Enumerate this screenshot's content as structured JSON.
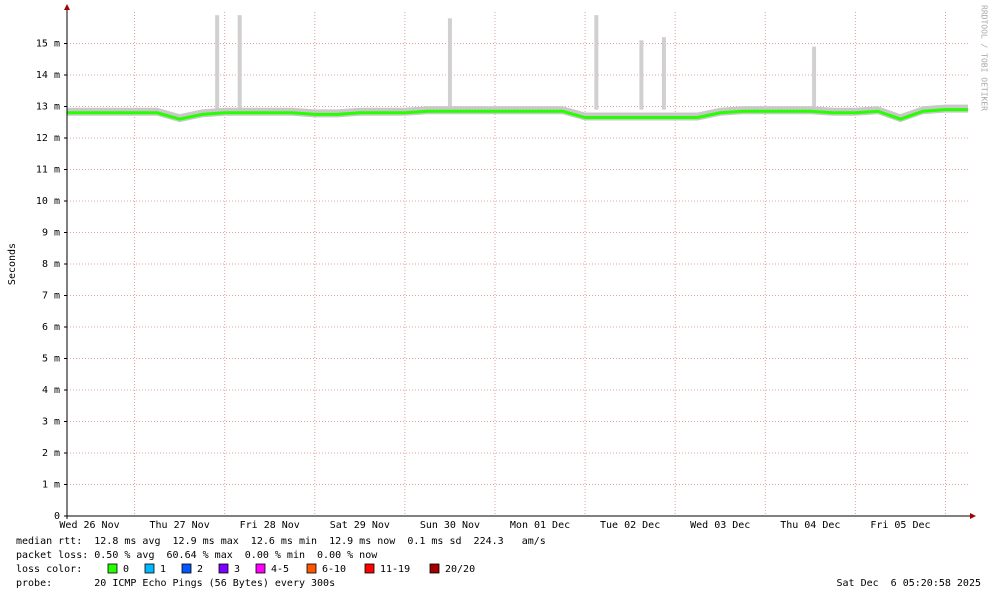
{
  "chart_data": {
    "type": "line",
    "y_label": "Seconds",
    "watermark": "RRDTOOL / TOBI OETIKER",
    "xlim": [
      6,
      246
    ],
    "xticks": [
      {
        "value": 12,
        "label": "Wed 26 Nov"
      },
      {
        "value": 36,
        "label": "Thu 27 Nov"
      },
      {
        "value": 60,
        "label": "Fri 28 Nov"
      },
      {
        "value": 84,
        "label": "Sat 29 Nov"
      },
      {
        "value": 108,
        "label": "Sun 30 Nov"
      },
      {
        "value": 132,
        "label": "Mon 01 Dec"
      },
      {
        "value": 156,
        "label": "Tue 02 Dec"
      },
      {
        "value": 180,
        "label": "Wed 03 Dec"
      },
      {
        "value": 204,
        "label": "Thu 04 Dec"
      },
      {
        "value": 228,
        "label": "Fri 05 Dec"
      }
    ],
    "x_grid": [
      24,
      48,
      72,
      96,
      120,
      144,
      168,
      192,
      216,
      240
    ],
    "ylim": [
      0,
      0.016
    ],
    "yticks": [
      {
        "value": 0,
        "label": "0"
      },
      {
        "value": 0.001,
        "label": "1 m"
      },
      {
        "value": 0.002,
        "label": "2 m"
      },
      {
        "value": 0.003,
        "label": "3 m"
      },
      {
        "value": 0.004,
        "label": "4 m"
      },
      {
        "value": 0.005,
        "label": "5 m"
      },
      {
        "value": 0.006,
        "label": "6 m"
      },
      {
        "value": 0.007,
        "label": "7 m"
      },
      {
        "value": 0.008,
        "label": "8 m"
      },
      {
        "value": 0.009,
        "label": "9 m"
      },
      {
        "value": 0.01,
        "label": "10 m"
      },
      {
        "value": 0.011,
        "label": "11 m"
      },
      {
        "value": 0.012,
        "label": "12 m"
      },
      {
        "value": 0.013,
        "label": "13 m"
      },
      {
        "value": 0.014,
        "label": "14 m"
      },
      {
        "value": 0.015,
        "label": "15 m"
      }
    ],
    "grid": true,
    "x": [
      6,
      12,
      18,
      24,
      30,
      36,
      42,
      48,
      54,
      60,
      66,
      72,
      78,
      84,
      90,
      96,
      102,
      108,
      114,
      120,
      126,
      132,
      138,
      144,
      150,
      156,
      162,
      168,
      174,
      180,
      186,
      192,
      198,
      204,
      210,
      216,
      222,
      228,
      234,
      240,
      246
    ],
    "series": [
      {
        "name": "median rtt",
        "color": "#26ff00",
        "values": [
          0.0128,
          0.0128,
          0.0128,
          0.0128,
          0.0128,
          0.0126,
          0.01275,
          0.0128,
          0.0128,
          0.0128,
          0.0128,
          0.01275,
          0.01275,
          0.0128,
          0.0128,
          0.0128,
          0.01285,
          0.01285,
          0.01285,
          0.01285,
          0.01285,
          0.01285,
          0.01285,
          0.01265,
          0.01265,
          0.01265,
          0.01265,
          0.01265,
          0.01265,
          0.0128,
          0.01285,
          0.01285,
          0.01285,
          0.01285,
          0.0128,
          0.0128,
          0.01285,
          0.0126,
          0.01285,
          0.0129,
          0.0129
        ]
      },
      {
        "name": "smoke",
        "color": "#d0d0d0",
        "x": [
          46,
          52,
          108,
          147,
          159,
          165,
          205
        ],
        "values": [
          0.0159,
          0.0159,
          0.0158,
          0.0159,
          0.0151,
          0.0152,
          0.0149
        ]
      }
    ],
    "stats": [
      "median rtt:  12.8 ms avg  12.9 ms max  12.6 ms min  12.9 ms now  0.1 ms sd  224.3   am/s",
      "packet loss: 0.50 % avg  60.64 % max  0.00 % min  0.00 % now"
    ],
    "loss_label": "loss color:",
    "loss_colors": [
      {
        "name": "0",
        "color": "#26ff00"
      },
      {
        "name": "1",
        "color": "#00b8ff"
      },
      {
        "name": "2",
        "color": "#0059ff"
      },
      {
        "name": "3",
        "color": "#7e00ff"
      },
      {
        "name": "4-5",
        "color": "#ff00ff"
      },
      {
        "name": "6-10",
        "color": "#ff5500"
      },
      {
        "name": "11-19",
        "color": "#ff0000"
      },
      {
        "name": "20/20",
        "color": "#a10000"
      }
    ],
    "probe": "probe:       20 ICMP Echo Pings (56 Bytes) every 300s",
    "timestamp": "Sat Dec  6 05:20:58 2025"
  }
}
